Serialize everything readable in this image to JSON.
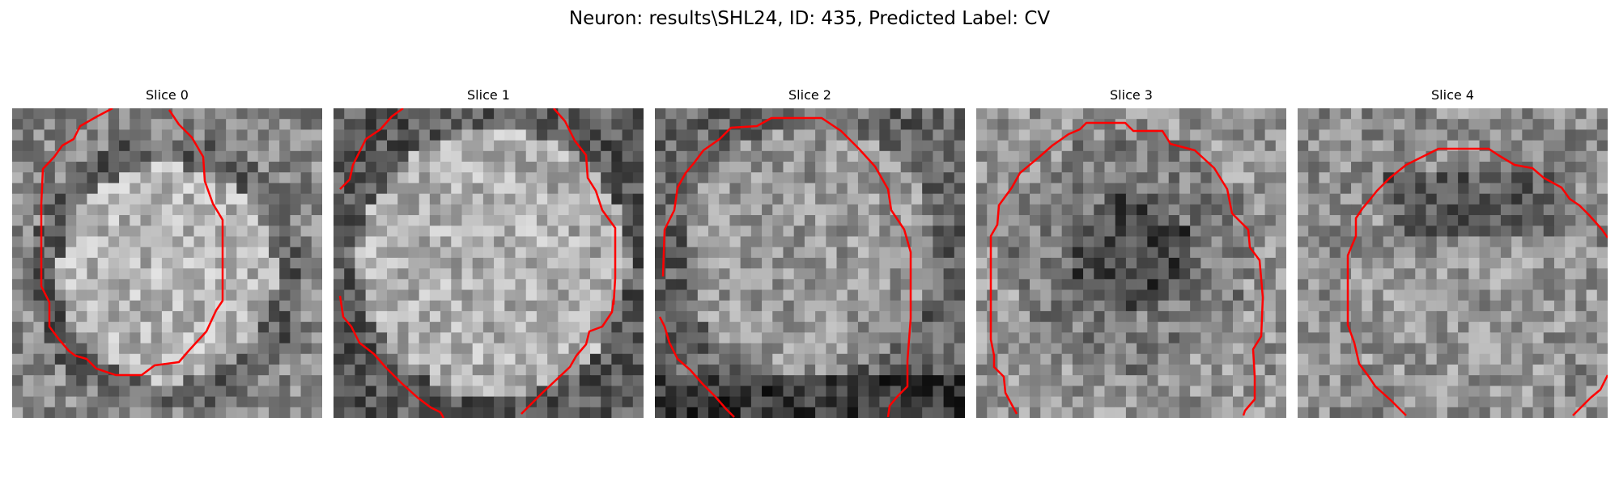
{
  "figure": {
    "title": "Neuron: results\\SHL24, ID: 435, Predicted Label: CV"
  },
  "colors": {
    "background": "#ffffff",
    "contour": "#ff0000",
    "colormap": "grayscale"
  },
  "slices": [
    {
      "title": "Slice 0",
      "pattern": "bright-center-ring"
    },
    {
      "title": "Slice 1",
      "pattern": "bright-fill"
    },
    {
      "title": "Slice 2",
      "pattern": "mid-gray-dark-bottom"
    },
    {
      "title": "Slice 3",
      "pattern": "dark-center"
    },
    {
      "title": "Slice 4",
      "pattern": "mottled-dark-top"
    }
  ]
}
